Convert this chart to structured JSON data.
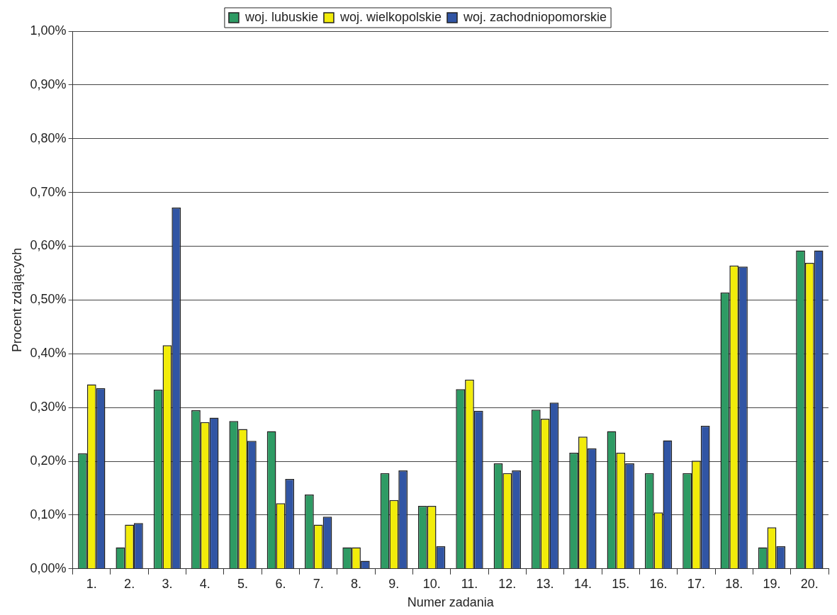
{
  "chart_data": {
    "type": "bar",
    "xlabel": "Numer zadania",
    "ylabel": "Procent zdających",
    "categories": [
      "1.",
      "2.",
      "3.",
      "4.",
      "5.",
      "6.",
      "7.",
      "8.",
      "9.",
      "10.",
      "11.",
      "12.",
      "13.",
      "14.",
      "15.",
      "16.",
      "17.",
      "18.",
      "19.",
      "20."
    ],
    "series": [
      {
        "name": "woj. lubuskie",
        "color": "#2e9b64",
        "values": [
          0.215,
          0.04,
          0.333,
          0.295,
          0.275,
          0.256,
          0.138,
          0.04,
          0.178,
          0.117,
          0.334,
          0.196,
          0.296,
          0.216,
          0.256,
          0.178,
          0.178,
          0.514,
          0.04,
          0.592
        ]
      },
      {
        "name": "woj. wielkopolskie",
        "color": "#f2ec0a",
        "values": [
          0.343,
          0.082,
          0.416,
          0.273,
          0.26,
          0.122,
          0.082,
          0.04,
          0.128,
          0.117,
          0.352,
          0.178,
          0.279,
          0.246,
          0.216,
          0.105,
          0.201,
          0.564,
          0.077,
          0.569
        ]
      },
      {
        "name": "woj. zachodniopomorskie",
        "color": "#3155a4",
        "values": [
          0.336,
          0.085,
          0.672,
          0.281,
          0.238,
          0.167,
          0.097,
          0.015,
          0.183,
          0.042,
          0.294,
          0.183,
          0.309,
          0.224,
          0.196,
          0.239,
          0.266,
          0.562,
          0.042,
          0.592
        ]
      }
    ],
    "ylim": [
      0,
      1
    ],
    "yticks": [
      {
        "value": 0,
        "label": "0,00%"
      },
      {
        "value": 0.1,
        "label": "0,10%"
      },
      {
        "value": 0.2,
        "label": "0,20%"
      },
      {
        "value": 0.3,
        "label": "0,30%"
      },
      {
        "value": 0.4,
        "label": "0,40%"
      },
      {
        "value": 0.5,
        "label": "0,50%"
      },
      {
        "value": 0.6,
        "label": "0,60%"
      },
      {
        "value": 0.7,
        "label": "0,70%"
      },
      {
        "value": 0.8,
        "label": "0,80%"
      },
      {
        "value": 0.9,
        "label": "0,90%"
      },
      {
        "value": 1,
        "label": "1,00%"
      }
    ],
    "grid": "y",
    "legend": "top"
  }
}
